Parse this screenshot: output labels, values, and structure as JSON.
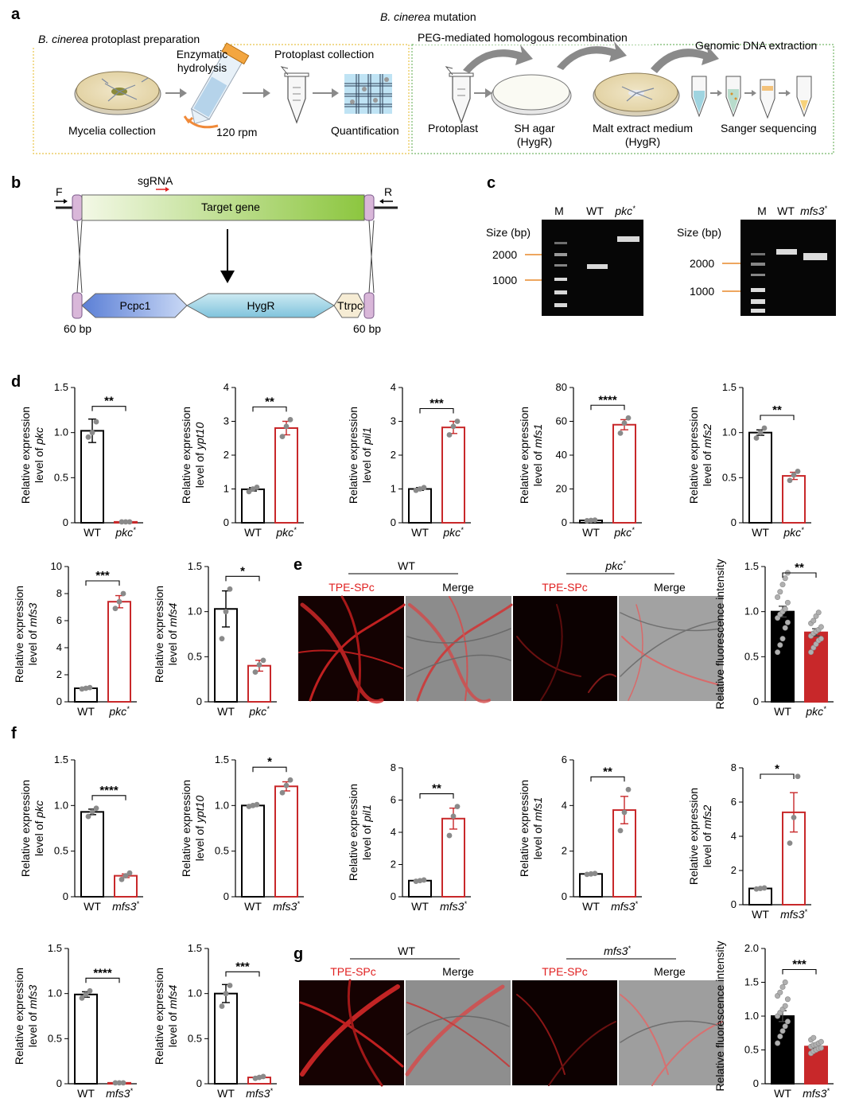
{
  "panel_a": {
    "letter": "a",
    "top_title_italic": "B. cinerea",
    "top_title_rest": " mutation",
    "left_title_italic": "B. cinerea",
    "left_title_rest": " protoplast preparation",
    "right_title": "PEG-mediated homologous recombination",
    "enzymatic": "Enzymatic",
    "hydrolysis": "hydrolysis",
    "protoplast_collection": "Protoplast collection",
    "genomic_dna": "Genomic DNA extraction",
    "mycelia": "Mycelia collection",
    "rpm": "120 rpm",
    "quantification": "Quantification",
    "protoplast": "Protoplast",
    "sh_agar": "SH agar",
    "hygr1": "(HygR)",
    "malt": "Malt extract medium",
    "hygr2": "(HygR)",
    "sanger": "Sanger sequencing"
  },
  "panel_b": {
    "letter": "b",
    "sgrna": "sgRNA",
    "f": "F",
    "r": "R",
    "target": "Target gene",
    "pcpc1": "Pcpc1",
    "hygr": "HygR",
    "ttrpc": "Ttrpc",
    "left_bp": "60 bp",
    "right_bp": "60 bp"
  },
  "panel_c": {
    "letter": "c",
    "size_label": "Size (bp)",
    "marker_2000": "2000",
    "marker_1000": "1000",
    "gel1": {
      "lanes": [
        "M",
        "WT",
        "pkc"
      ],
      "star": "*"
    },
    "gel2": {
      "lanes": [
        "M",
        "WT",
        "mfs3"
      ],
      "star": "*"
    }
  },
  "panel_letters": {
    "d": "d",
    "e": "e",
    "f": "f",
    "g": "g"
  },
  "ylabel_prefix": "Relative expression",
  "ylabel_level": "level of ",
  "wt_label": "WT",
  "colors": {
    "wt": "#000000",
    "mutant": "#c8282a",
    "dot": "#8a8a8a",
    "fill_e": "#c8282a"
  },
  "panel_e": {
    "wt_header": "WT",
    "mut_header": "pkc",
    "star": "*",
    "tpe": "TPE-SPc",
    "merge": "Merge",
    "ylabel": "Relative fluorescence intensity"
  },
  "panel_g": {
    "wt_header": "WT",
    "mut_header": "mfs3",
    "star": "*",
    "tpe": "TPE-SPc",
    "merge": "Merge",
    "ylabel": "Relative fluorescence intensity"
  },
  "chart_data": [
    {
      "type": "bar",
      "id": "d-pkc",
      "gene": "pkc",
      "categories": [
        "WT",
        "pkc*"
      ],
      "values": [
        1.02,
        0.01
      ],
      "errors": [
        0.13,
        0.005
      ],
      "ylim": [
        0,
        1.5
      ],
      "ticks": [
        "0",
        "0.5",
        "1.0",
        "1.5"
      ],
      "sig": "**",
      "points": [
        [
          0.95,
          1.0,
          1.12
        ],
        [
          0.01,
          0.01,
          0.01
        ]
      ]
    },
    {
      "type": "bar",
      "id": "d-ypt10",
      "gene": "ypt10",
      "categories": [
        "WT",
        "pkc*"
      ],
      "values": [
        0.99,
        2.8
      ],
      "errors": [
        0.05,
        0.2
      ],
      "ylim": [
        0,
        4
      ],
      "ticks": [
        "0",
        "1",
        "2",
        "3",
        "4"
      ],
      "sig": "**",
      "points": [
        [
          0.92,
          1.0,
          1.05
        ],
        [
          2.55,
          2.85,
          3.05
        ]
      ]
    },
    {
      "type": "bar",
      "id": "d-pil1",
      "gene": "pil1",
      "categories": [
        "WT",
        "pkc*"
      ],
      "values": [
        1.0,
        2.82
      ],
      "errors": [
        0.04,
        0.18
      ],
      "ylim": [
        0,
        4
      ],
      "ticks": [
        "0",
        "1",
        "2",
        "3",
        "4"
      ],
      "sig": "***",
      "points": [
        [
          0.96,
          1.0,
          1.04
        ],
        [
          2.6,
          2.85,
          3.0
        ]
      ]
    },
    {
      "type": "bar",
      "id": "d-mfs1",
      "gene": "mfs1",
      "categories": [
        "WT",
        "pkc*"
      ],
      "values": [
        1.4,
        58
      ],
      "errors": [
        0.3,
        3
      ],
      "ylim": [
        0,
        80
      ],
      "ticks": [
        "0",
        "20",
        "40",
        "60",
        "80"
      ],
      "sig": "****",
      "points": [
        [
          1.2,
          1.4,
          1.6
        ],
        [
          53,
          59,
          62
        ]
      ]
    },
    {
      "type": "bar",
      "id": "d-mfs2",
      "gene": "mfs2",
      "categories": [
        "WT",
        "pkc*"
      ],
      "values": [
        1.0,
        0.52
      ],
      "errors": [
        0.03,
        0.04
      ],
      "ylim": [
        0,
        1.5
      ],
      "ticks": [
        "0",
        "0.5",
        "1.0",
        "1.5"
      ],
      "sig": "**",
      "points": [
        [
          0.94,
          1.0,
          1.05
        ],
        [
          0.47,
          0.53,
          0.57
        ]
      ]
    },
    {
      "type": "bar",
      "id": "d-mfs3",
      "gene": "mfs3",
      "categories": [
        "WT",
        "pkc*"
      ],
      "values": [
        1.0,
        7.4
      ],
      "errors": [
        0.06,
        0.45
      ],
      "ylim": [
        0,
        10
      ],
      "ticks": [
        "0",
        "2",
        "4",
        "6",
        "8",
        "10"
      ],
      "sig": "***",
      "points": [
        [
          0.95,
          1.0,
          1.05
        ],
        [
          6.9,
          7.4,
          8.0
        ]
      ]
    },
    {
      "type": "bar",
      "id": "d-mfs4",
      "gene": "mfs4",
      "categories": [
        "WT",
        "pkc*"
      ],
      "values": [
        1.03,
        0.4
      ],
      "errors": [
        0.2,
        0.06
      ],
      "ylim": [
        0,
        1.5
      ],
      "ticks": [
        "0",
        "0.5",
        "1.0",
        "1.5"
      ],
      "sig": "*",
      "points": [
        [
          0.7,
          1.0,
          1.25
        ],
        [
          0.33,
          0.41,
          0.46
        ]
      ]
    },
    {
      "type": "bar",
      "id": "e-fluor",
      "categories": [
        "WT",
        "pkc*"
      ],
      "values": [
        1.0,
        0.77
      ],
      "errors": [
        0.06,
        0.04
      ],
      "ylim": [
        0,
        1.5
      ],
      "ticks": [
        "0",
        "0.5",
        "1.0",
        "1.5"
      ],
      "sig": "**",
      "filled": true,
      "points": [
        [
          0.55,
          0.63,
          0.7,
          0.82,
          0.88,
          0.93,
          0.97,
          1.0,
          1.03,
          1.1,
          1.16,
          1.22,
          1.3,
          1.37,
          1.43
        ],
        [
          0.55,
          0.6,
          0.64,
          0.68,
          0.7,
          0.73,
          0.76,
          0.78,
          0.8,
          0.83,
          0.87,
          0.9,
          0.95,
          0.99
        ]
      ]
    },
    {
      "type": "bar",
      "id": "f-pkc",
      "gene": "pkc",
      "categories": [
        "WT",
        "mfs3*"
      ],
      "values": [
        0.93,
        0.23
      ],
      "errors": [
        0.03,
        0.02
      ],
      "ylim": [
        0,
        1.5
      ],
      "ticks": [
        "0",
        "0.5",
        "1.0",
        "1.5"
      ],
      "sig": "****",
      "points": [
        [
          0.88,
          0.93,
          0.97
        ],
        [
          0.19,
          0.23,
          0.26
        ]
      ]
    },
    {
      "type": "bar",
      "id": "f-ypt10",
      "gene": "ypt10",
      "categories": [
        "WT",
        "mfs3*"
      ],
      "values": [
        1.0,
        1.21
      ],
      "errors": [
        0.01,
        0.05
      ],
      "ylim": [
        0,
        1.5
      ],
      "ticks": [
        "0",
        "0.5",
        "1.0",
        "1.5"
      ],
      "sig": "*",
      "points": [
        [
          0.99,
          1.0,
          1.01
        ],
        [
          1.14,
          1.22,
          1.28
        ]
      ]
    },
    {
      "type": "bar",
      "id": "f-pil1",
      "gene": "pil1",
      "categories": [
        "WT",
        "mfs3*"
      ],
      "values": [
        1.0,
        4.85
      ],
      "errors": [
        0.04,
        0.65
      ],
      "ylim": [
        0,
        8
      ],
      "ticks": [
        "0",
        "2",
        "4",
        "6",
        "8"
      ],
      "sig": "**",
      "points": [
        [
          0.96,
          1.0,
          1.04
        ],
        [
          3.8,
          5.0,
          5.6
        ]
      ]
    },
    {
      "type": "bar",
      "id": "f-mfs1",
      "gene": "mfs1",
      "categories": [
        "WT",
        "mfs3*"
      ],
      "values": [
        1.0,
        3.8
      ],
      "errors": [
        0.02,
        0.6
      ],
      "ylim": [
        0,
        6
      ],
      "ticks": [
        "0",
        "2",
        "4",
        "6"
      ],
      "sig": "**",
      "points": [
        [
          0.98,
          1.0,
          1.02
        ],
        [
          2.9,
          3.7,
          4.7
        ]
      ]
    },
    {
      "type": "bar",
      "id": "f-mfs2",
      "gene": "mfs2",
      "categories": [
        "WT",
        "mfs3*"
      ],
      "values": [
        0.95,
        5.4
      ],
      "errors": [
        0.03,
        1.15
      ],
      "ylim": [
        0,
        8
      ],
      "ticks": [
        "0",
        "2",
        "4",
        "6",
        "8"
      ],
      "sig": "*",
      "points": [
        [
          0.92,
          0.95,
          0.98
        ],
        [
          3.6,
          5.1,
          7.5
        ]
      ]
    },
    {
      "type": "bar",
      "id": "f-mfs3",
      "gene": "mfs3",
      "categories": [
        "WT",
        "mfs3*"
      ],
      "values": [
        0.99,
        0.01
      ],
      "errors": [
        0.03,
        0.003
      ],
      "ylim": [
        0,
        1.5
      ],
      "ticks": [
        "0",
        "0.5",
        "1.0",
        "1.5"
      ],
      "sig": "****",
      "points": [
        [
          0.95,
          0.99,
          1.03
        ],
        [
          0.01,
          0.01,
          0.01
        ]
      ]
    },
    {
      "type": "bar",
      "id": "f-mfs4",
      "gene": "mfs4",
      "categories": [
        "WT",
        "mfs3*"
      ],
      "values": [
        1.0,
        0.07
      ],
      "errors": [
        0.1,
        0.01
      ],
      "ylim": [
        0,
        1.5
      ],
      "ticks": [
        "0",
        "0.5",
        "1.0",
        "1.5"
      ],
      "sig": "***",
      "points": [
        [
          0.86,
          1.0,
          1.09
        ],
        [
          0.06,
          0.07,
          0.08
        ]
      ]
    },
    {
      "type": "bar",
      "id": "g-fluor",
      "categories": [
        "WT",
        "mfs3*"
      ],
      "values": [
        1.0,
        0.55
      ],
      "errors": [
        0.08,
        0.03
      ],
      "ylim": [
        0,
        2.0
      ],
      "ticks": [
        "0",
        "0.5",
        "1.0",
        "1.5",
        "2.0"
      ],
      "sig": "***",
      "filled": true,
      "points": [
        [
          0.6,
          0.7,
          0.78,
          0.85,
          0.92,
          1.0,
          1.05,
          1.1,
          1.15,
          1.25,
          1.3,
          1.35,
          1.43,
          1.5
        ],
        [
          0.45,
          0.48,
          0.5,
          0.52,
          0.53,
          0.55,
          0.57,
          0.58,
          0.6,
          0.62,
          0.65,
          0.68
        ]
      ]
    }
  ]
}
